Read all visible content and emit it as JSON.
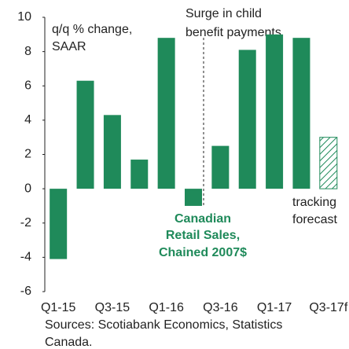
{
  "chart_data": {
    "type": "bar",
    "categories": [
      "Q1-15",
      null,
      "Q3-15",
      null,
      "Q1-16",
      null,
      "Q3-16",
      null,
      "Q1-17",
      null,
      "Q3-17f"
    ],
    "values": [
      -4.1,
      6.3,
      4.3,
      1.7,
      8.8,
      -1.0,
      2.5,
      8.1,
      9.0,
      8.8,
      3.0
    ],
    "hatched": [
      false,
      false,
      false,
      false,
      false,
      false,
      false,
      false,
      false,
      false,
      true
    ],
    "color": "#1f8a5a",
    "ylim": [
      -6,
      10
    ],
    "yticks": [
      -6,
      -4,
      -2,
      0,
      2,
      4,
      6,
      8,
      10
    ],
    "axis_label": [
      "q/q % change,",
      "SAAR"
    ],
    "annotation_surge": [
      "Surge in child",
      "benefit payments"
    ],
    "annotation_series": [
      "Canadian",
      "Retail Sales,",
      "Chained 2007$"
    ],
    "annotation_forecast": [
      "tracking",
      "forecast"
    ],
    "source": [
      "Sources: Scotiabank Economics, Statistics",
      "Canada."
    ]
  }
}
